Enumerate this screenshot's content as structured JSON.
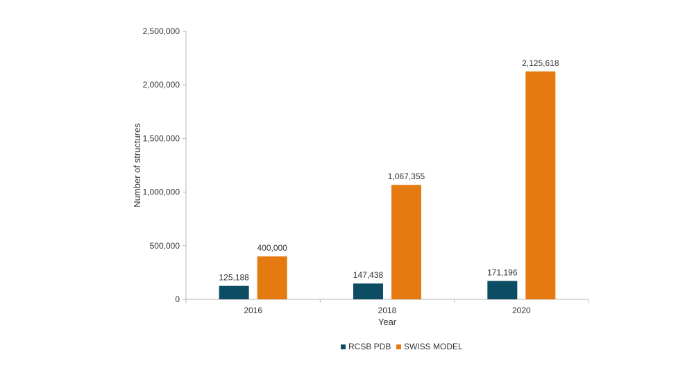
{
  "chart_data": {
    "type": "bar",
    "title": "",
    "xlabel": "Year",
    "ylabel": "Number of structures",
    "categories": [
      "2016",
      "2018",
      "2020"
    ],
    "series": [
      {
        "name": "RCSB PDB",
        "color": "#0d4d63",
        "values": [
          125188,
          147438,
          171196
        ],
        "labels": [
          "125,188",
          "147,438",
          "171,196"
        ]
      },
      {
        "name": "SWISS MODEL",
        "color": "#e57a10",
        "values": [
          400000,
          1067355,
          2125618
        ],
        "labels": [
          "400,000",
          "1,067,355",
          "2,125,618"
        ]
      }
    ],
    "ylim": [
      0,
      2500000
    ],
    "yticks": [
      0,
      500000,
      1000000,
      1500000,
      2000000,
      2500000
    ],
    "ytick_labels": [
      "0",
      "500,000",
      "1,000,000",
      "1,500,000",
      "2,000,000",
      "2,500,000"
    ],
    "grid": false,
    "legend_position": "bottom"
  }
}
